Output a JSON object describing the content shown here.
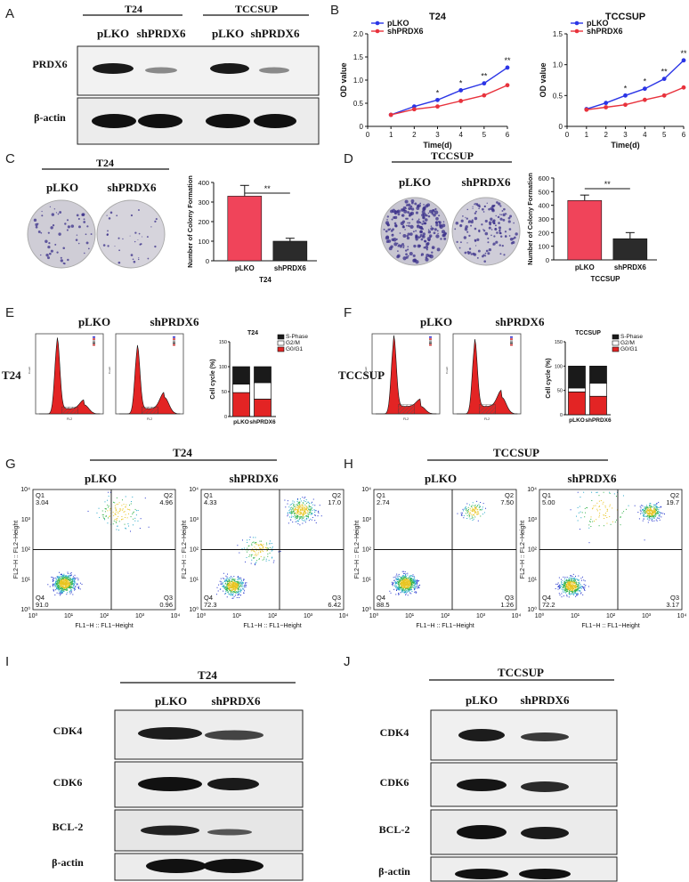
{
  "panel_letters": [
    "A",
    "B",
    "C",
    "D",
    "E",
    "F",
    "G",
    "H",
    "I",
    "J"
  ],
  "panelA": {
    "groups": [
      "T24",
      "TCCSUP"
    ],
    "lanes": [
      "pLKO",
      "shPRDX6",
      "pLKO",
      "shPRDX6"
    ],
    "rows": [
      "PRDX6",
      "β-actin"
    ]
  },
  "panelB": {
    "charts": [
      {
        "title": "T24",
        "xlabel": "Time(d)",
        "ylabel": "OD value",
        "legend": [
          "pLKO",
          "shPRDX6"
        ],
        "x": [
          1,
          2,
          3,
          4,
          5,
          6
        ],
        "series": [
          {
            "name": "pLKO",
            "values": [
              0.25,
              0.43,
              0.57,
              0.78,
              0.93,
              1.27
            ]
          },
          {
            "name": "shPRDX6",
            "values": [
              0.25,
              0.37,
              0.43,
              0.55,
              0.67,
              0.89
            ]
          }
        ],
        "sig": [
          "",
          "",
          "*",
          "*",
          "**",
          "**"
        ],
        "ylim": [
          0,
          2.0
        ],
        "yticks": [
          "0",
          "0.5",
          "1.0",
          "1.5",
          "2.0"
        ],
        "xticks": [
          "0",
          "1",
          "2",
          "3",
          "4",
          "5",
          "6"
        ]
      },
      {
        "title": "TCCSUP",
        "xlabel": "Time(d)",
        "ylabel": "OD value",
        "legend": [
          "pLKO",
          "shPRDX6"
        ],
        "x": [
          1,
          2,
          3,
          4,
          5,
          6
        ],
        "series": [
          {
            "name": "pLKO",
            "values": [
              0.28,
              0.38,
              0.5,
              0.61,
              0.77,
              1.07
            ]
          },
          {
            "name": "shPRDX6",
            "values": [
              0.27,
              0.31,
              0.35,
              0.43,
              0.5,
              0.63
            ]
          }
        ],
        "sig": [
          "",
          "",
          "*",
          "*",
          "**",
          "**"
        ],
        "ylim": [
          0,
          1.5
        ],
        "yticks": [
          "0",
          "0.5",
          "1.0",
          "1.5"
        ],
        "xticks": [
          "0",
          "1",
          "2",
          "3",
          "4",
          "5",
          "6"
        ]
      }
    ]
  },
  "panelC": {
    "group": "T24",
    "plates": [
      "pLKO",
      "shPRDX6"
    ]
  },
  "panelD": {
    "group": "TCCSUP",
    "plates": [
      "pLKO",
      "shPRDX6"
    ]
  },
  "panelE": {
    "labels": [
      "pLKO",
      "shPRDX6"
    ],
    "side": "T24",
    "chart_title": "T24"
  },
  "panelF": {
    "labels": [
      "pLKO",
      "shPRDX6"
    ],
    "side": "TCCSUP",
    "chart_title": "TCCSUP"
  },
  "cycle_legend": [
    "S-Phase",
    "G2/M",
    "G0/G1"
  ],
  "cycle_ylabel": "Cell cycle (%)",
  "cycle_cats": [
    "pLKO",
    "shPRDX6"
  ],
  "cycle_ticks": [
    "0",
    "50",
    "100",
    "150"
  ],
  "flow_axis_labels": {
    "x": "FL1−H :: FL1−Height",
    "y": "FL2−H :: FL2−Height"
  },
  "flow_ticks": [
    "10⁰",
    "10¹",
    "10²",
    "10³",
    "10⁴"
  ],
  "flow_minor": {
    "fl2": "FL2",
    "fl1": "FL1",
    "count": "Count",
    "ticklabel": "000"
  },
  "flow_scatter_plots": [
    {
      "q": [
        "Q1",
        "Q2",
        "Q3",
        "Q4"
      ],
      "v": [
        "3.04",
        "4.96",
        "0.96",
        "91.0"
      ]
    },
    {
      "q": [
        "Q1",
        "Q2",
        "Q3",
        "Q4"
      ],
      "v": [
        "4.33",
        "17.0",
        "6.42",
        "72.3"
      ]
    },
    {
      "q": [
        "Q1",
        "Q2",
        "Q3",
        "Q4"
      ],
      "v": [
        "2.74",
        "7.50",
        "1.26",
        "88.5"
      ]
    },
    {
      "q": [
        "Q1",
        "Q2",
        "Q3",
        "Q4"
      ],
      "v": [
        "5.00",
        "19.7",
        "3.17",
        "72.2"
      ]
    }
  ],
  "panelG": {
    "group": "T24",
    "labels": [
      "pLKO",
      "shPRDX6"
    ]
  },
  "panelH": {
    "group": "TCCSUP",
    "labels": [
      "pLKO",
      "shPRDX6"
    ]
  },
  "panelI": {
    "group": "T24",
    "lanes": [
      "pLKO",
      "shPRDX6"
    ],
    "rows": [
      "CDK4",
      "CDK6",
      "BCL-2",
      "β-actin"
    ]
  },
  "panelJ": {
    "group": "TCCSUP",
    "lanes": [
      "pLKO",
      "shPRDX6"
    ],
    "rows": [
      "CDK4",
      "CDK6",
      "BCL-2",
      "β-actin"
    ]
  },
  "chart_data": [
    {
      "type": "line",
      "title": "T24",
      "xlabel": "Time(d)",
      "ylabel": "OD value",
      "x": [
        1,
        2,
        3,
        4,
        5,
        6
      ],
      "series": [
        {
          "name": "pLKO",
          "values": [
            0.25,
            0.43,
            0.57,
            0.78,
            0.93,
            1.27
          ]
        },
        {
          "name": "shPRDX6",
          "values": [
            0.25,
            0.37,
            0.43,
            0.55,
            0.67,
            0.89
          ]
        }
      ],
      "ylim": [
        0,
        2.0
      ],
      "xlim": [
        0,
        6
      ],
      "legend": "top-left",
      "colors": [
        "#2b35e6",
        "#e8323c"
      ]
    },
    {
      "type": "line",
      "title": "TCCSUP",
      "xlabel": "Time(d)",
      "ylabel": "OD value",
      "x": [
        1,
        2,
        3,
        4,
        5,
        6
      ],
      "series": [
        {
          "name": "pLKO",
          "values": [
            0.28,
            0.38,
            0.5,
            0.61,
            0.77,
            1.07
          ]
        },
        {
          "name": "shPRDX6",
          "values": [
            0.27,
            0.31,
            0.35,
            0.43,
            0.5,
            0.63
          ]
        }
      ],
      "ylim": [
        0,
        1.5
      ],
      "xlim": [
        0,
        6
      ],
      "legend": "top-left",
      "colors": [
        "#2b35e6",
        "#e8323c"
      ]
    },
    {
      "type": "bar",
      "title": "",
      "categories": [
        "pLKO",
        "shPRDX6"
      ],
      "values": [
        330,
        100
      ],
      "errors": [
        55,
        15
      ],
      "xlabel": "T24",
      "ylabel": "Number of Colony Formation",
      "ylim": [
        0,
        400
      ],
      "yticks": [
        "0",
        "100",
        "200",
        "300",
        "400"
      ],
      "significance": "**",
      "colors": [
        "#f0445a",
        "#2b2b2b"
      ]
    },
    {
      "type": "bar",
      "title": "",
      "categories": [
        "pLKO",
        "shPRDX6"
      ],
      "values": [
        435,
        155
      ],
      "errors": [
        40,
        45
      ],
      "xlabel": "TCCSUP",
      "ylabel": "Number of Colony Formation",
      "ylim": [
        0,
        600
      ],
      "yticks": [
        "0",
        "100",
        "200",
        "300",
        "400",
        "500",
        "600"
      ],
      "significance": "**",
      "colors": [
        "#f0445a",
        "#2b2b2b"
      ]
    },
    {
      "type": "bar",
      "title": "T24",
      "categories": [
        "pLKO",
        "shPRDX6"
      ],
      "stacked": true,
      "ylabel": "Cell cycle (%)",
      "ylim": [
        0,
        150
      ],
      "series": [
        {
          "name": "G0/G1",
          "values": [
            48,
            35
          ]
        },
        {
          "name": "G2/M",
          "values": [
            17,
            33
          ]
        },
        {
          "name": "S-Phase",
          "values": [
            35,
            32
          ]
        }
      ],
      "legend": "top-right"
    },
    {
      "type": "bar",
      "title": "TCCSUP",
      "categories": [
        "pLKO",
        "shPRDX6"
      ],
      "stacked": true,
      "ylabel": "Cell cycle (%)",
      "ylim": [
        0,
        150
      ],
      "series": [
        {
          "name": "G0/G1",
          "values": [
            47,
            38
          ]
        },
        {
          "name": "G2/M",
          "values": [
            8,
            27
          ]
        },
        {
          "name": "S-Phase",
          "values": [
            45,
            35
          ]
        }
      ],
      "legend": "top-right"
    }
  ]
}
